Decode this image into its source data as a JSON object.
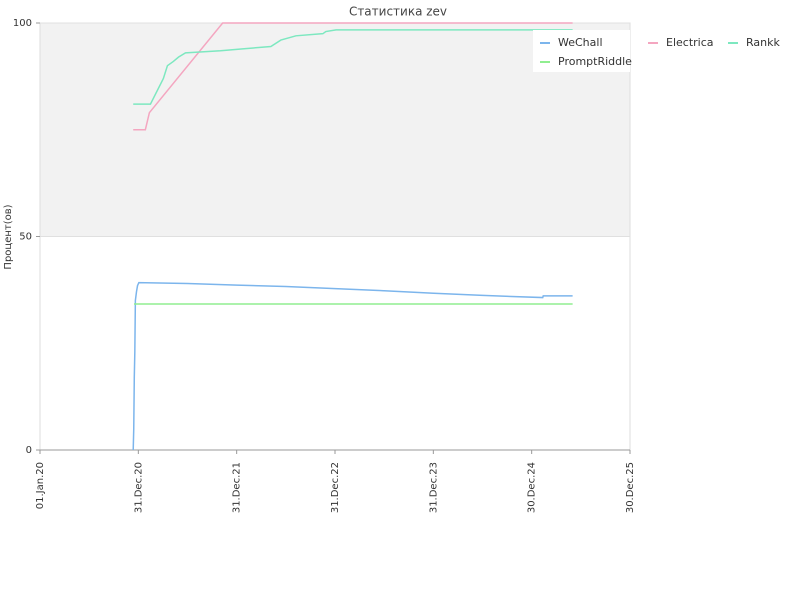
{
  "chart_data": {
    "type": "line",
    "title": "Статистика zev",
    "y_label": "Процент(ов)",
    "xlim": [
      "2020-01-01",
      "2025-12-30"
    ],
    "xticks": [
      {
        "value": "2020-01-01",
        "label": "01.Jan.20"
      },
      {
        "value": "2020-12-31",
        "label": "31.Dec.20"
      },
      {
        "value": "2021-12-31",
        "label": "31.Dec.21"
      },
      {
        "value": "2022-12-31",
        "label": "31.Dec.22"
      },
      {
        "value": "2023-12-31",
        "label": "31.Dec.23"
      },
      {
        "value": "2024-12-30",
        "label": "30.Dec.24"
      },
      {
        "value": "2025-12-30",
        "label": "30.Dec.25"
      }
    ],
    "ylim": [
      0,
      100
    ],
    "yticks": [
      0,
      50,
      100
    ],
    "grid": true,
    "grid_band_color": "#f2f2f2",
    "legend": "top-right",
    "series": [
      {
        "name": "WeChall",
        "color": "#7cb5ec",
        "x": [
          "2020-12-12",
          "2020-12-14",
          "2020-12-16",
          "2020-12-18",
          "2020-12-20",
          "2020-12-24",
          "2020-12-28",
          "2021-01-02",
          "2021-07-01",
          "2022-01-01",
          "2022-07-01",
          "2023-01-01",
          "2023-07-01",
          "2024-01-01",
          "2024-07-01",
          "2025-02-09",
          "2025-02-11",
          "2025-05-31"
        ],
        "values": [
          0,
          5,
          17,
          23,
          35,
          37,
          38.5,
          39.2,
          39,
          38.6,
          38.3,
          37.8,
          37.3,
          36.7,
          36.2,
          35.7,
          36.1,
          36.1
        ]
      },
      {
        "name": "Electrica",
        "color": "#f4a6c0",
        "x": [
          "2020-12-12",
          "2021-01-26",
          "2021-02-10",
          "2021-11-09",
          "2025-05-31"
        ],
        "values": [
          75,
          75,
          79,
          100,
          100
        ]
      },
      {
        "name": "Rankk",
        "color": "#7de8c0",
        "x": [
          "2020-12-12",
          "2021-02-14",
          "2021-04-03",
          "2021-04-18",
          "2021-05-10",
          "2021-05-29",
          "2021-06-24",
          "2021-11-01",
          "2022-02-02",
          "2022-05-07",
          "2022-06-13",
          "2022-08-08",
          "2022-11-16",
          "2022-11-27",
          "2023-01-04",
          "2025-05-31"
        ],
        "values": [
          81,
          81,
          87,
          90,
          91,
          92,
          93,
          93.5,
          94,
          94.5,
          96,
          97,
          97.5,
          98,
          98.4,
          98.4
        ]
      },
      {
        "name": "PromptRiddle",
        "color": "#90ee90",
        "x": [
          "2020-12-15",
          "2025-05-31"
        ],
        "values": [
          34.2,
          34.2
        ]
      }
    ]
  }
}
